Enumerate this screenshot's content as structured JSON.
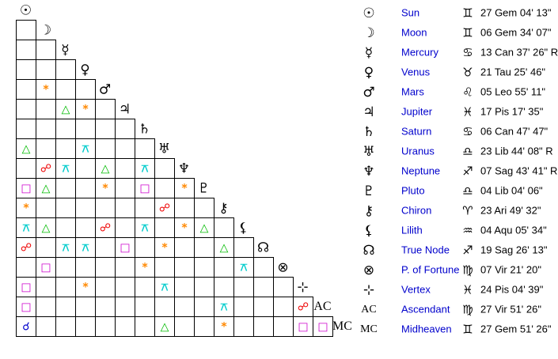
{
  "planets": [
    {
      "symbol": "☉",
      "name": "Sun",
      "sign": "♊",
      "position": "27 Gem 04' 13\""
    },
    {
      "symbol": "☽",
      "name": "Moon",
      "sign": "♊",
      "position": "06 Gem 34' 07\""
    },
    {
      "symbol": "☿",
      "name": "Mercury",
      "sign": "♋",
      "position": "13 Can 37' 26\" R"
    },
    {
      "symbol": "♀",
      "name": "Venus",
      "sign": "♉",
      "position": "21 Tau 25' 46\""
    },
    {
      "symbol": "♂",
      "name": "Mars",
      "sign": "♌",
      "position": "05 Leo 55' 11\""
    },
    {
      "symbol": "♃",
      "name": "Jupiter",
      "sign": "♓",
      "position": "17 Pis 17' 35\""
    },
    {
      "symbol": "♄",
      "name": "Saturn",
      "sign": "♋",
      "position": "06 Can 47' 47\""
    },
    {
      "symbol": "♅",
      "name": "Uranus",
      "sign": "♎",
      "position": "23 Lib 44' 08\" R"
    },
    {
      "symbol": "♆",
      "name": "Neptune",
      "sign": "♐",
      "position": "07 Sag 43' 41\" R"
    },
    {
      "symbol": "♇",
      "name": "Pluto",
      "sign": "♎",
      "position": "04 Lib 04' 06\""
    },
    {
      "symbol": "⚷",
      "name": "Chiron",
      "sign": "♈",
      "position": "23 Ari 49' 32\""
    },
    {
      "symbol": "⚸",
      "name": "Lilith",
      "sign": "♒",
      "position": "04 Aqu 05' 34\""
    },
    {
      "symbol": "☊",
      "name": "True Node",
      "sign": "♐",
      "position": "19 Sag 26' 13\""
    },
    {
      "symbol": "⊗",
      "name": "P. of Fortune",
      "sign": "♍",
      "position": "07 Vir 21' 20\""
    },
    {
      "symbol": "⊹",
      "name": "Vertex",
      "sign": "♓",
      "position": "24 Pis 04' 39\""
    },
    {
      "symbol": "AC",
      "name": "Ascendant",
      "sign": "♍",
      "position": "27 Vir 51' 26\""
    },
    {
      "symbol": "MC",
      "name": "Midheaven",
      "sign": "♊",
      "position": "27 Gem 51' 26\""
    }
  ],
  "aspect_colors": {
    "*": "#ff8800",
    "△": "#00bb00",
    "⚻": "#00cccc",
    "☍": "#ee0000",
    "□": "#cc00cc",
    "☌": "#0000cc"
  },
  "grid": [
    [
      null
    ],
    [
      null,
      null
    ],
    [
      null,
      null,
      null
    ],
    [
      null,
      "*",
      null,
      null
    ],
    [
      null,
      null,
      "△",
      "*",
      null
    ],
    [
      null,
      null,
      null,
      null,
      null,
      null
    ],
    [
      "△",
      null,
      null,
      "⚻",
      null,
      null,
      null
    ],
    [
      null,
      "☍",
      "⚻",
      null,
      "△",
      null,
      "⚻",
      null
    ],
    [
      "□",
      "△",
      null,
      null,
      "*",
      null,
      "□",
      null,
      "*"
    ],
    [
      "*",
      null,
      null,
      null,
      null,
      null,
      null,
      "☍",
      null,
      null
    ],
    [
      "⚻",
      "△",
      null,
      null,
      "☍",
      null,
      "⚻",
      null,
      "*",
      "△",
      null
    ],
    [
      "☍",
      null,
      "⚻",
      "⚻",
      null,
      "□",
      null,
      "*",
      null,
      null,
      "△",
      null
    ],
    [
      null,
      "□",
      null,
      null,
      null,
      null,
      "*",
      null,
      null,
      null,
      null,
      "⚻",
      null
    ],
    [
      "□",
      null,
      null,
      "*",
      null,
      null,
      null,
      "⚻",
      null,
      null,
      null,
      null,
      null,
      null
    ],
    [
      "□",
      null,
      null,
      null,
      null,
      null,
      null,
      null,
      null,
      null,
      "⚻",
      null,
      null,
      null,
      "☍"
    ],
    [
      "☌",
      null,
      null,
      null,
      null,
      null,
      null,
      "△",
      null,
      null,
      "*",
      null,
      null,
      null,
      "□",
      "□"
    ]
  ]
}
